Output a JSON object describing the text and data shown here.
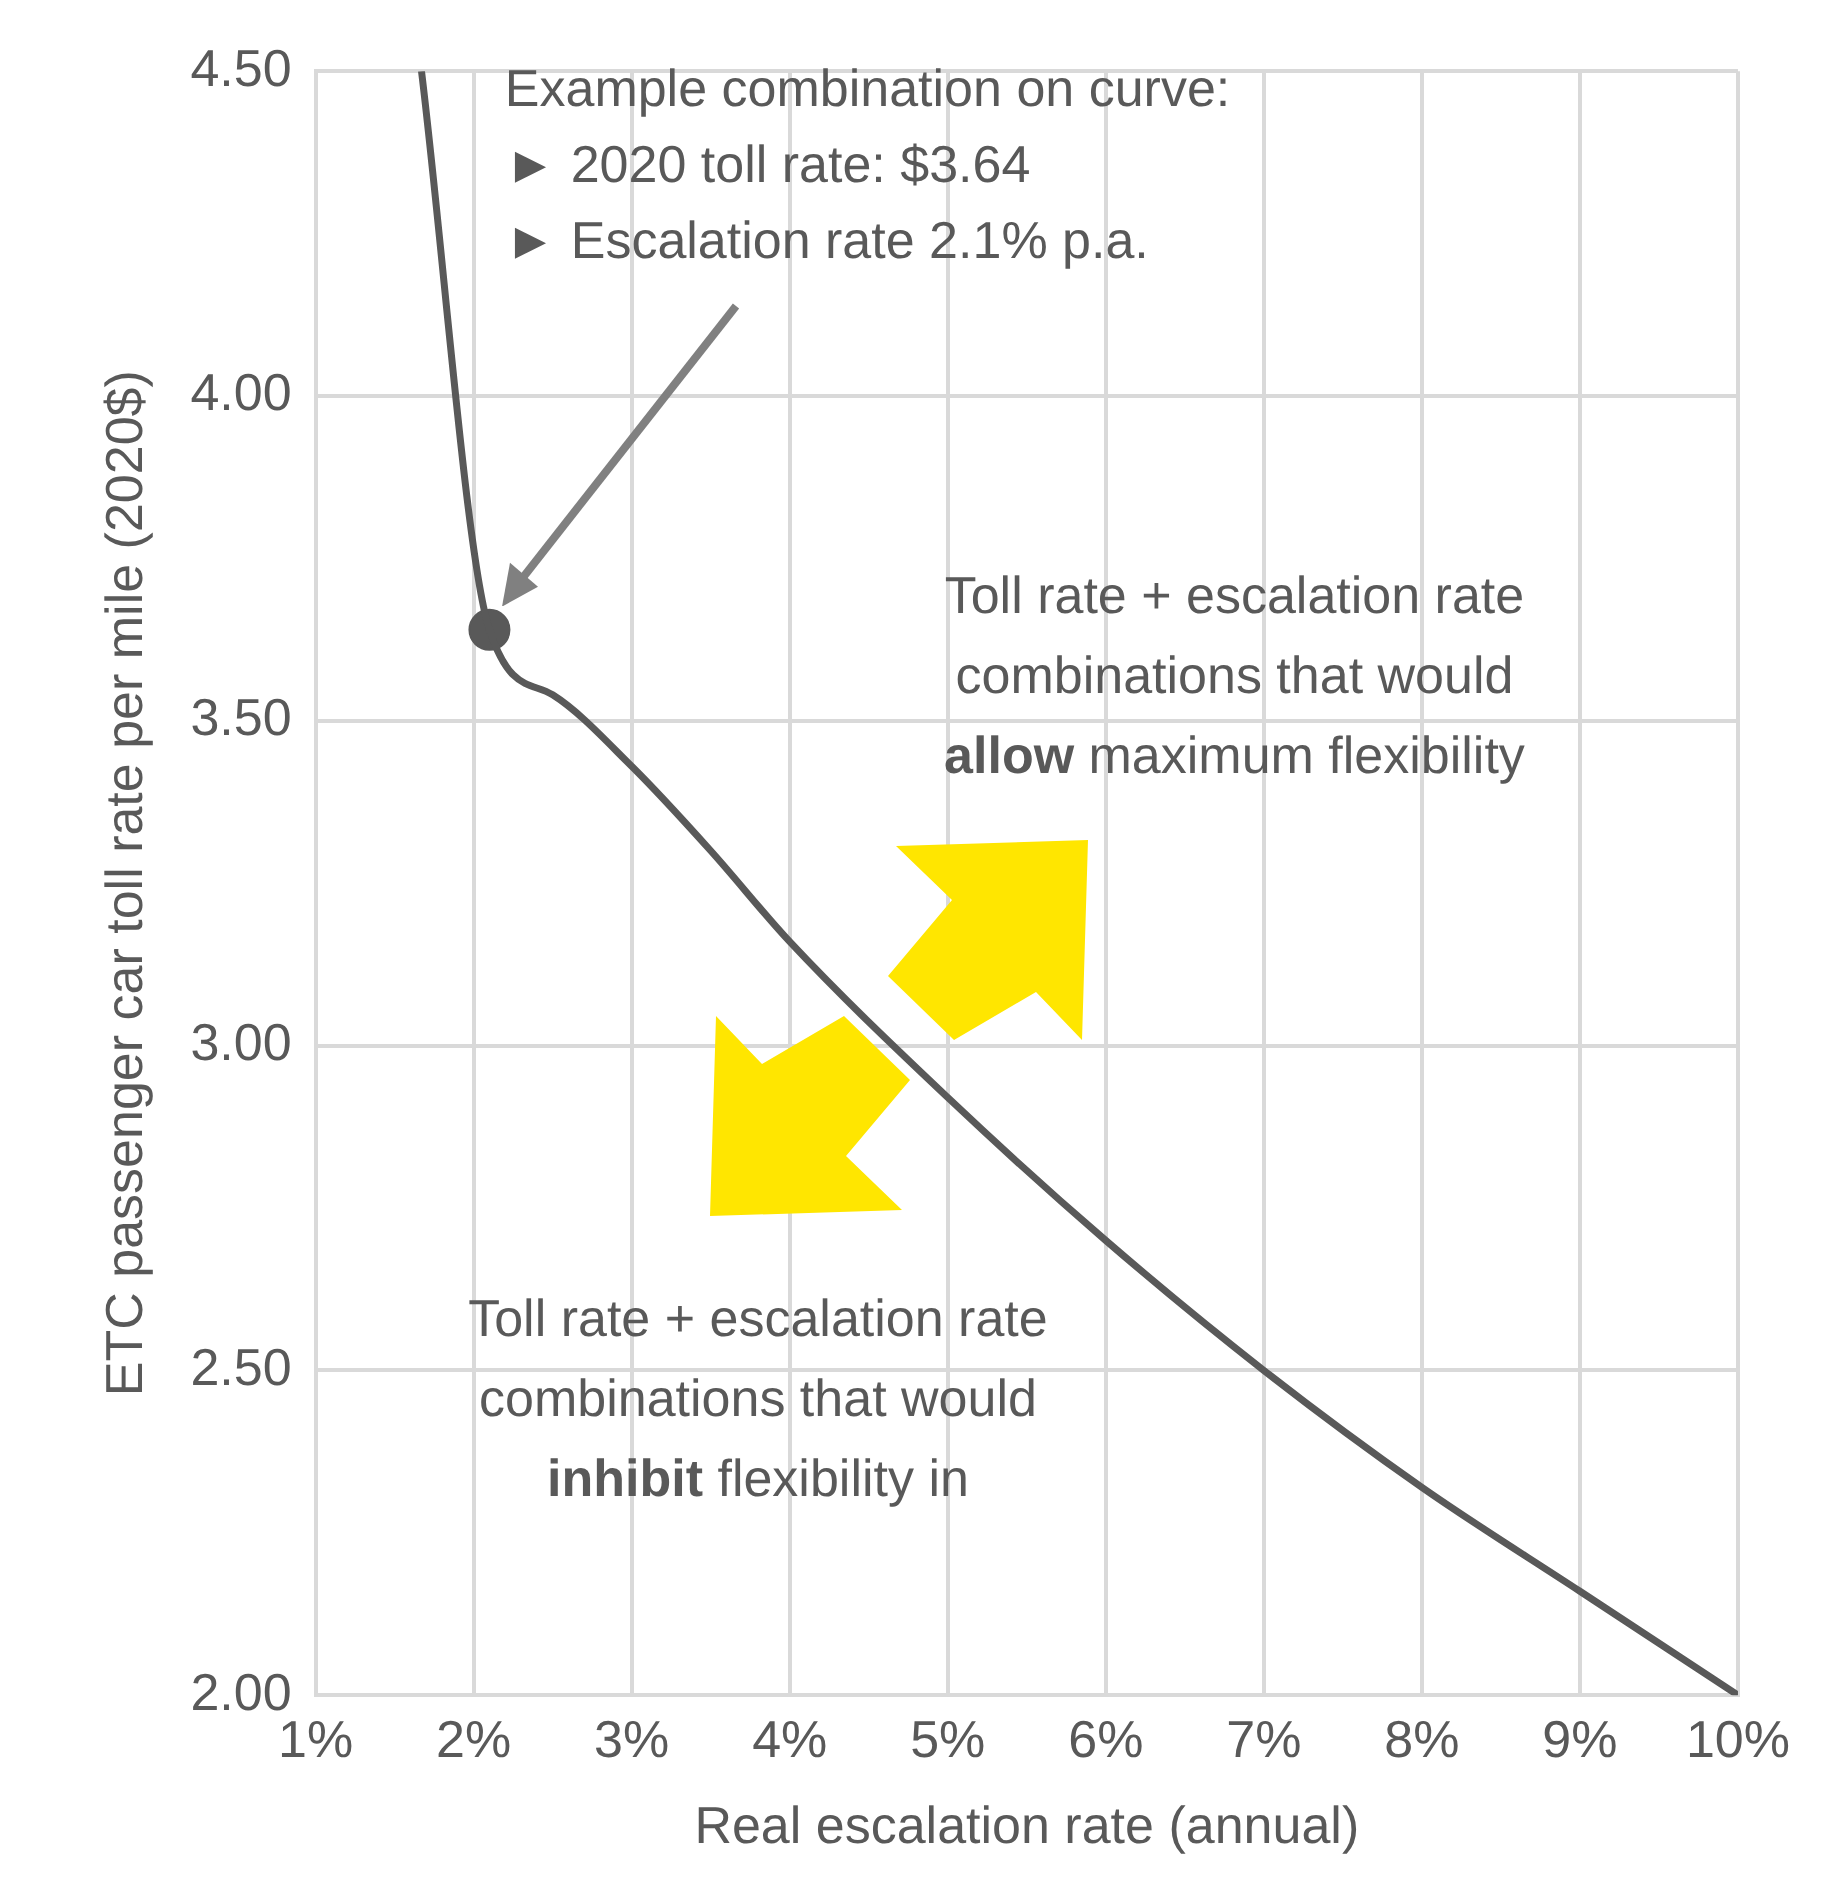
{
  "chart_data": {
    "type": "line",
    "xlabel": "Real escalation rate (annual)",
    "ylabel": "ETC passenger car toll rate per mile (2020$)",
    "xlim": [
      1,
      10
    ],
    "xticks": [
      {
        "value": 1,
        "label": "1%"
      },
      {
        "value": 2,
        "label": "2%"
      },
      {
        "value": 3,
        "label": "3%"
      },
      {
        "value": 4,
        "label": "4%"
      },
      {
        "value": 5,
        "label": "5%"
      },
      {
        "value": 6,
        "label": "6%"
      },
      {
        "value": 7,
        "label": "7%"
      },
      {
        "value": 8,
        "label": "8%"
      },
      {
        "value": 9,
        "label": "9%"
      },
      {
        "value": 10,
        "label": "10%"
      }
    ],
    "ylim": [
      2,
      4.5
    ],
    "yticks": [
      {
        "value": 2,
        "label": "2.00"
      },
      {
        "value": 2.5,
        "label": "2.50"
      },
      {
        "value": 3,
        "label": "3.00"
      },
      {
        "value": 3.5,
        "label": "3.50"
      },
      {
        "value": 4,
        "label": "4.00"
      },
      {
        "value": 4.5,
        "label": "4.50"
      }
    ],
    "grid": true,
    "legend": false,
    "series": [
      {
        "type": "line",
        "color": "#595959",
        "marker": "none",
        "x": [
          1.67,
          2.1,
          2.5,
          3,
          3.5,
          4,
          5,
          6,
          7,
          8,
          9,
          10
        ],
        "values": [
          4.5,
          3.64,
          3.54,
          3.43,
          3.3,
          3.16,
          2.92,
          2.7,
          2.5,
          2.32,
          2.16,
          2.0
        ]
      },
      {
        "type": "scatter",
        "color": "#595959",
        "marker": "circle",
        "x": [
          2.1
        ],
        "values": [
          3.64
        ]
      }
    ],
    "annotations": [
      "Example combination on curve:\n► 2020 toll rate: $3.64\n► Escalation rate 2.1% p.a.",
      "Toll rate + escalation rate\ncombinations that would\nallow maximum flexibility",
      "Toll rate + escalation rate\ncombinations that would\ninhibit flexibility in"
    ]
  }
}
